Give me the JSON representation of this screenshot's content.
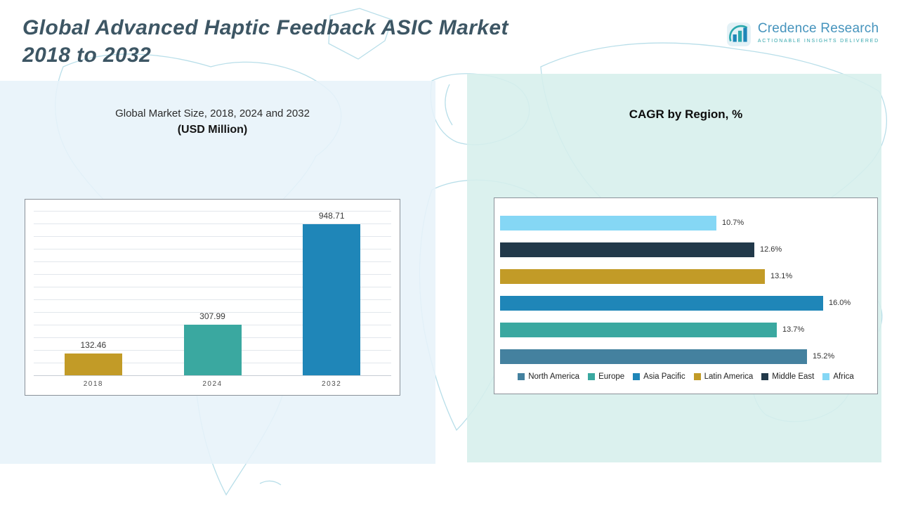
{
  "header": {
    "title_line1": "Global Advanced Haptic Feedback ASIC Market",
    "title_line2": "2018 to 2032",
    "logo": {
      "name": "Credence Research",
      "tagline": "Actionable Insights Delivered"
    }
  },
  "chart_data": [
    {
      "type": "bar",
      "title": "Global Market Size, 2018, 2024 and 2032",
      "subtitle": "(USD Million)",
      "categories": [
        "2018",
        "2024",
        "2032"
      ],
      "values": [
        132.46,
        307.99,
        948.71
      ],
      "value_labels": [
        "132.46",
        "307.99",
        "948.71"
      ],
      "colors": [
        "#c29b27",
        "#3aa8a0",
        "#1f86b8"
      ],
      "ylim": [
        0,
        1000
      ],
      "grid": true,
      "legend_position": "none"
    },
    {
      "type": "bar-horizontal",
      "title": "CAGR by Region, %",
      "xmax": 16.0,
      "grid": false,
      "legend_position": "bottom",
      "rows": [
        {
          "region": "Africa",
          "value": 10.7,
          "label": "10.7%",
          "color": "#85d7f5"
        },
        {
          "region": "Middle East",
          "value": 12.6,
          "label": "12.6%",
          "color": "#22394a"
        },
        {
          "region": "Latin America",
          "value": 13.1,
          "label": "13.1%",
          "color": "#c29b27"
        },
        {
          "region": "Asia Pacific",
          "value": 16.0,
          "label": "16.0%",
          "color": "#1f86b8"
        },
        {
          "region": "Europe",
          "value": 13.7,
          "label": "13.7%",
          "color": "#3aa8a0"
        },
        {
          "region": "North America",
          "value": 15.2,
          "label": "15.2%",
          "color": "#44819f"
        }
      ],
      "legend": [
        {
          "label": "North America",
          "color": "#44819f"
        },
        {
          "label": "Europe",
          "color": "#3aa8a0"
        },
        {
          "label": "Asia Pacific",
          "color": "#1f86b8"
        },
        {
          "label": "Latin America",
          "color": "#c29b27"
        },
        {
          "label": "Middle East",
          "color": "#22394a"
        },
        {
          "label": "Africa",
          "color": "#85d7f5"
        }
      ]
    }
  ]
}
